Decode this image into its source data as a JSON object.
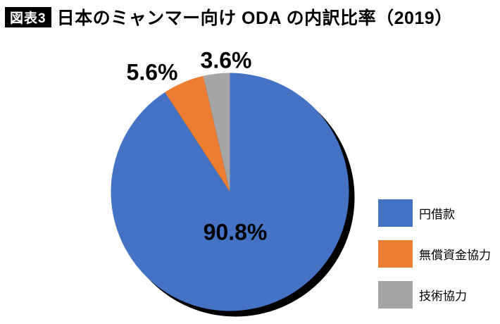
{
  "header": {
    "badge": "図表3",
    "title": "日本のミャンマー向け ODA の内訳比率（2019）"
  },
  "chart_data": {
    "type": "pie",
    "title": "日本のミャンマー向け ODA の内訳比率（2019）",
    "start_angle_deg": 0,
    "direction": "clockwise",
    "legend_position": "right",
    "shadow_color": "#000000",
    "categories": [
      "円借款",
      "無償資金協力",
      "技術協力"
    ],
    "values": [
      90.8,
      5.6,
      3.6
    ],
    "slices": [
      {
        "name": "円借款",
        "value": 90.8,
        "label": "90.8%",
        "color": "#4472C4"
      },
      {
        "name": "無償資金協力",
        "value": 5.6,
        "label": "5.6%",
        "color": "#ED7D31"
      },
      {
        "name": "技術協力",
        "value": 3.6,
        "label": "3.6%",
        "color": "#A5A5A5"
      }
    ]
  }
}
